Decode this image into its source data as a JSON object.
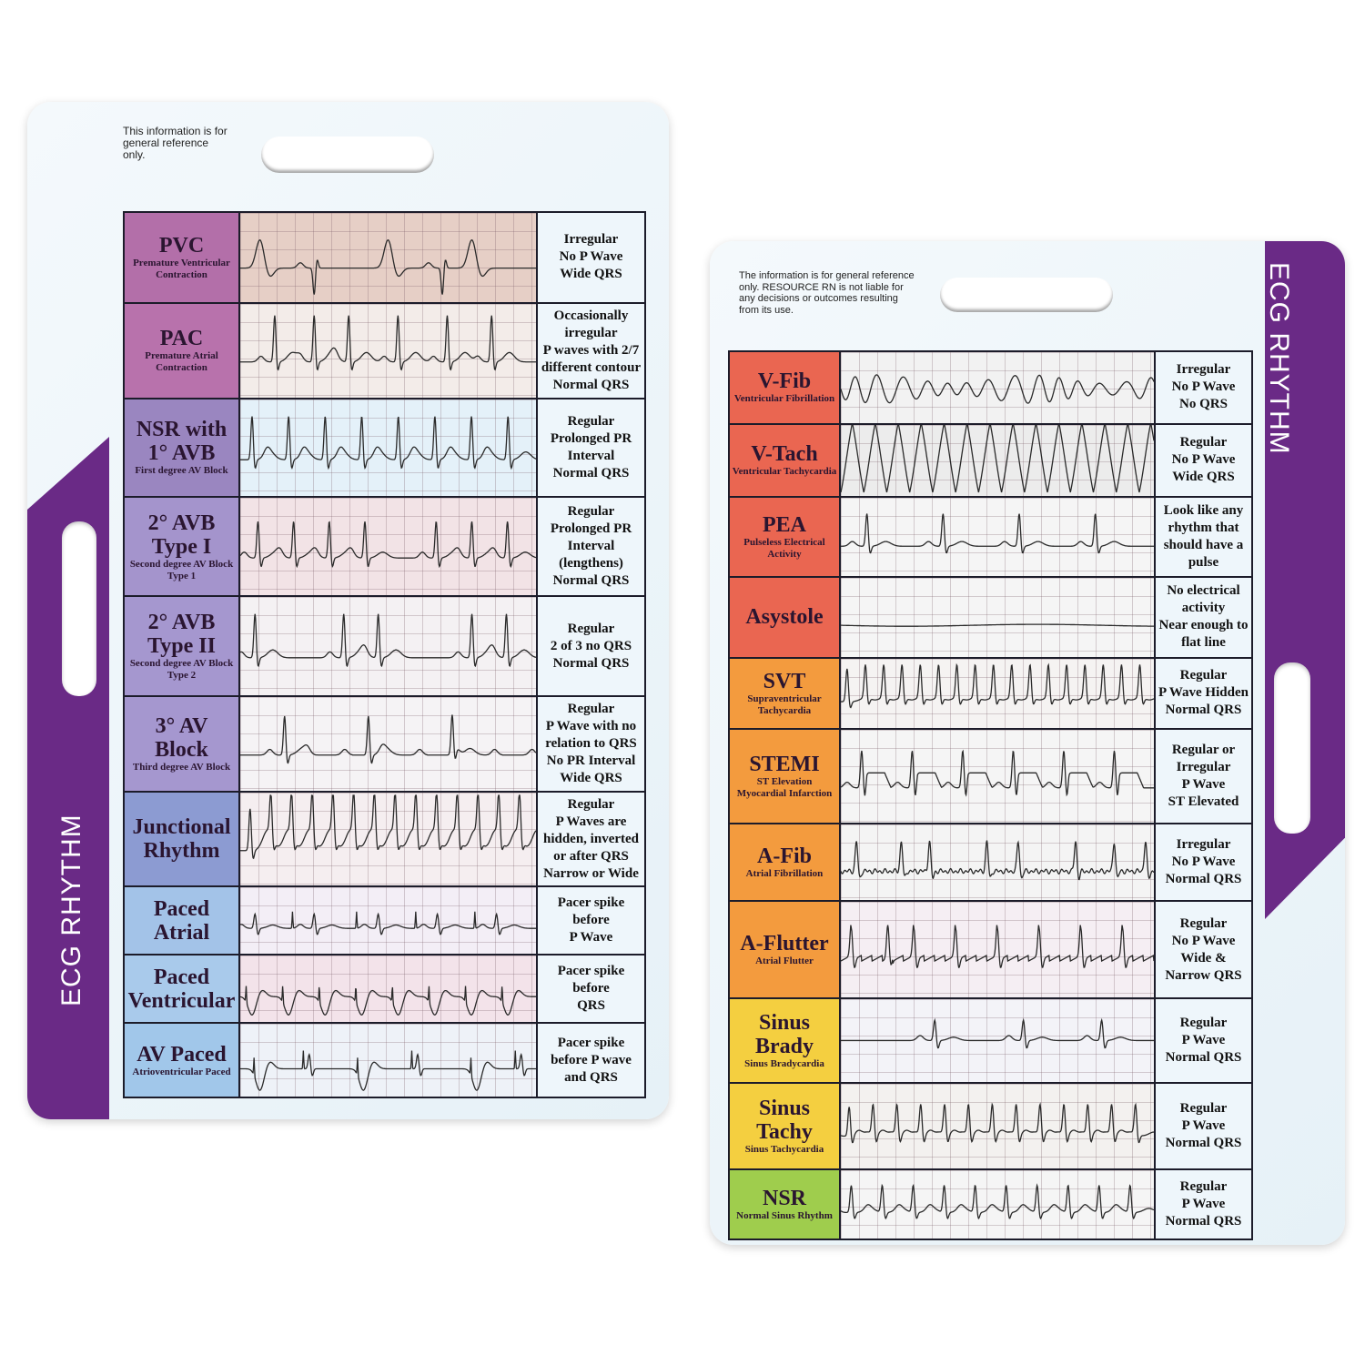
{
  "left_card": {
    "disclaimer": "This information is for general reference only.",
    "side_label": "ECG RHYTHM",
    "band_color": "#6a2a86",
    "rows": [
      {
        "title": "PVC",
        "subtitle": "Premature Ventricular Contraction",
        "description": "Irregular\nNo P Wave\nWide QRS",
        "color": "#b36fa9",
        "strip_bg": "#e6cfc6",
        "pattern": "pvc"
      },
      {
        "title": "PAC",
        "subtitle": "Premature Atrial Contraction",
        "description": "Occasionally irregular\nP waves with 2/7 different contour\nNormal QRS",
        "color": "#b872ac",
        "strip_bg": "#f3ece9",
        "pattern": "pac"
      },
      {
        "title": "NSR with 1° AVB",
        "subtitle": "First degree AV Block",
        "description": "Regular\nProlonged PR Interval\nNormal QRS",
        "color": "#9a86c0",
        "strip_bg": "#e4f1f9",
        "pattern": "avb1"
      },
      {
        "title": "2° AVB Type I",
        "subtitle": "Second degree AV Block Type 1",
        "description": "Regular\nProlonged PR Interval\n(lengthens)\nNormal QRS",
        "color": "#a494cc",
        "strip_bg": "#f2e3e6",
        "pattern": "avb2a"
      },
      {
        "title": "2° AVB Type II",
        "subtitle": "Second degree AV Block Type 2",
        "description": "Regular\n2 of 3 no QRS\nNormal QRS",
        "color": "#a597cf",
        "strip_bg": "#f4f1f3",
        "pattern": "avb2b"
      },
      {
        "title": "3° AV Block",
        "subtitle": "Third degree AV Block",
        "description": "Regular\nP Wave with no relation to QRS\nNo PR Interval\nWide QRS",
        "color": "#a597cf",
        "strip_bg": "#f5f3f5",
        "pattern": "avb3"
      },
      {
        "title": "Junctional Rhythm",
        "subtitle": "",
        "description": "Regular\nP Waves are hidden, inverted or after QRS\nNarrow or Wide",
        "color": "#8c9bd2",
        "strip_bg": "#f5eef0",
        "pattern": "junctional"
      },
      {
        "title": "Paced Atrial",
        "subtitle": "",
        "description": "Pacer spike before\nP Wave",
        "color": "#a3c3e8",
        "strip_bg": "#f3eef6",
        "pattern": "pacedA"
      },
      {
        "title": "Paced Ventricular",
        "subtitle": "",
        "description": "Pacer spike before\nQRS",
        "color": "#a9caeb",
        "strip_bg": "#f3e3ea",
        "pattern": "pacedV"
      },
      {
        "title": "AV Paced",
        "subtitle": "Atrioventricular Paced",
        "description": "Pacer spike before P wave and QRS",
        "color": "#a1c7ea",
        "strip_bg": "#eef2f8",
        "pattern": "pacedAV"
      }
    ]
  },
  "right_card": {
    "disclaimer": "The information is for general reference only. RESOURCE RN is not liable for any decisions or outcomes resulting from its use.",
    "side_label": "ECG RHYTHM",
    "band_color": "#6a2a86",
    "rows": [
      {
        "title": "V-Fib",
        "subtitle": "Ventricular Fibrillation",
        "description": "Irregular\nNo P Wave\nNo QRS",
        "color": "#ea6651",
        "strip_bg": "#f2f2f2",
        "pattern": "vfib"
      },
      {
        "title": "V-Tach",
        "subtitle": "Ventricular Tachycardia",
        "description": "Regular\nNo P Wave\nWide QRS",
        "color": "#ea6651",
        "strip_bg": "#ececec",
        "pattern": "vtach"
      },
      {
        "title": "PEA",
        "subtitle": "Pulseless Electrical Activity",
        "description": "Look like any rhythm that should have a pulse",
        "color": "#ea6651",
        "strip_bg": "#f5f5f5",
        "pattern": "pea"
      },
      {
        "title": "Asystole",
        "subtitle": "",
        "description": "No electrical activity\nNear enough to flat line",
        "color": "#ea6651",
        "strip_bg": "#f5f5f5",
        "pattern": "flat"
      },
      {
        "title": "SVT",
        "subtitle": "Supraventricular Tachycardia",
        "description": "Regular\nP Wave Hidden\nNormal QRS",
        "color": "#f39b3e",
        "strip_bg": "#f5f3f2",
        "pattern": "svt"
      },
      {
        "title": "STEMI",
        "subtitle": "ST Elevation Myocardial Infarction",
        "description": "Regular or Irregular\nP Wave\nST Elevated",
        "color": "#f39b3e",
        "strip_bg": "#f5f5f5",
        "pattern": "stemi"
      },
      {
        "title": "A-Fib",
        "subtitle": "Atrial Fibrillation",
        "description": "Irregular\nNo P Wave\nNormal QRS",
        "color": "#f39b3e",
        "strip_bg": "#f4f4f4",
        "pattern": "afib"
      },
      {
        "title": "A-Flutter",
        "subtitle": "Atrial Flutter",
        "description": "Regular\nNo P Wave\nWide & Narrow QRS",
        "color": "#f39b3e",
        "strip_bg": "#f5eef3",
        "pattern": "flutter"
      },
      {
        "title": "Sinus Brady",
        "subtitle": "Sinus Bradycardia",
        "description": "Regular\nP Wave\nNormal QRS",
        "color": "#f4cf40",
        "strip_bg": "#f3f3f8",
        "pattern": "brady"
      },
      {
        "title": "Sinus Tachy",
        "subtitle": "Sinus Tachycardia",
        "description": "Regular\nP Wave\nNormal QRS",
        "color": "#f4cf40",
        "strip_bg": "#f3f1ef",
        "pattern": "tachy"
      },
      {
        "title": "NSR",
        "subtitle": "Normal Sinus Rhythm",
        "description": "Regular\nP Wave\nNormal QRS",
        "color": "#9fcd4d",
        "strip_bg": "#f5f5f5",
        "pattern": "nsr"
      }
    ]
  }
}
